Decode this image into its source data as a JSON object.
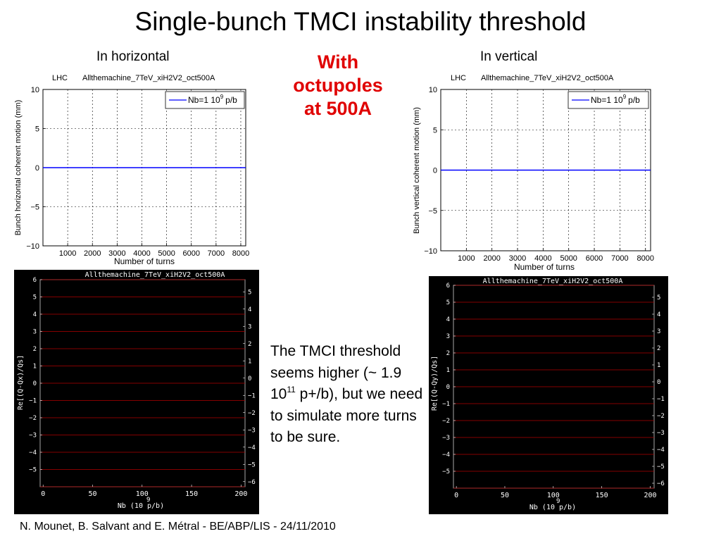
{
  "slide": {
    "title": "Single-bunch TMCI instability threshold",
    "highlight_line1": "With",
    "highlight_line2": "octupoles",
    "highlight_line3": "at 500A",
    "highlight_color": "#e00000",
    "note_part1": "The TMCI threshold seems higher (~ 1.9 10",
    "note_exp": "11",
    "note_part2": " p+/b), but we need to simulate more turns to be sure.",
    "footer": "N. Mounet, B. Salvant and E. Métral - BE/ABP/LIS - 24/11/2010"
  },
  "chart_data": [
    {
      "type": "line",
      "panel_label": "In horizontal",
      "title_left": "LHC",
      "title_right": "Allthemachine_7TeV_xiH2V2_oct500A",
      "xlabel": "Number of turns",
      "ylabel": "Bunch horizontal coherent motion (mm)",
      "xlim": [
        0,
        8200
      ],
      "ylim": [
        -10,
        10
      ],
      "xticks": [
        1000,
        2000,
        3000,
        4000,
        5000,
        6000,
        7000,
        8000
      ],
      "yticks": [
        -10,
        -5,
        0,
        5,
        10
      ],
      "grid": true,
      "legend_position": "top-right",
      "series": [
        {
          "name": "Nb=1 10",
          "name_exp": "9",
          "name_unit": "p/b",
          "color": "#0000ff",
          "x": [
            0,
            8200
          ],
          "y": [
            0,
            0
          ]
        }
      ]
    },
    {
      "type": "line",
      "panel_label": "In vertical",
      "title_left": "LHC",
      "title_right": "Allthemachine_7TeV_xiH2V2_oct500A",
      "xlabel": "Number of turns",
      "ylabel": "Bunch vertical coherent motion (mm)",
      "xlim": [
        0,
        8200
      ],
      "ylim": [
        -10,
        10
      ],
      "xticks": [
        1000,
        2000,
        3000,
        4000,
        5000,
        6000,
        7000,
        8000
      ],
      "yticks": [
        -10,
        -5,
        0,
        5,
        10
      ],
      "grid": true,
      "legend_position": "top-right",
      "series": [
        {
          "name": "Nb=1 10",
          "name_exp": "9",
          "name_unit": "p/b",
          "color": "#0000ff",
          "x": [
            0,
            8200
          ],
          "y": [
            0,
            0
          ]
        }
      ]
    },
    {
      "type": "line",
      "title": "Allthemachine_7TeV_xiH2V2_oct500A",
      "xlabel": "Nb (10 p/b)",
      "xlabel_exp": "9",
      "ylabel": "Re[(Q-Qx)/Qs]",
      "xlim": [
        -3,
        204
      ],
      "ylim": [
        -6,
        6
      ],
      "xticks": [
        0,
        50,
        100,
        150,
        200
      ],
      "yticks": [
        -5,
        -4,
        -3,
        -2,
        -1,
        0,
        1,
        2,
        3,
        4,
        5,
        6
      ],
      "right_yticks": [
        -6,
        -5,
        -4,
        -3,
        -2,
        -1,
        0,
        1,
        2,
        3,
        4,
        5
      ],
      "background": "#000000",
      "line_color": "#b00000",
      "series_values": [
        -6,
        -5,
        -4,
        -3,
        -2,
        -1,
        0,
        1,
        2,
        3,
        4,
        5,
        6
      ]
    },
    {
      "type": "line",
      "title": "Allthemachine_7TeV_xiH2V2_oct500A",
      "xlabel": "Nb (10 p/b)",
      "xlabel_exp": "9",
      "ylabel": "Re[(Q-Qy)/Qs]",
      "xlim": [
        -3,
        204
      ],
      "ylim": [
        -6,
        6
      ],
      "xticks": [
        0,
        50,
        100,
        150,
        200
      ],
      "yticks": [
        -5,
        -4,
        -3,
        -2,
        -1,
        0,
        1,
        2,
        3,
        4,
        5,
        6
      ],
      "right_yticks": [
        -6,
        -5,
        -4,
        -3,
        -2,
        -1,
        0,
        1,
        2,
        3,
        4,
        5
      ],
      "background": "#000000",
      "line_color": "#b00000",
      "series_values": [
        -6,
        -5,
        -4,
        -3,
        -2,
        -1,
        0,
        1,
        2,
        3,
        4,
        5,
        6
      ]
    }
  ]
}
